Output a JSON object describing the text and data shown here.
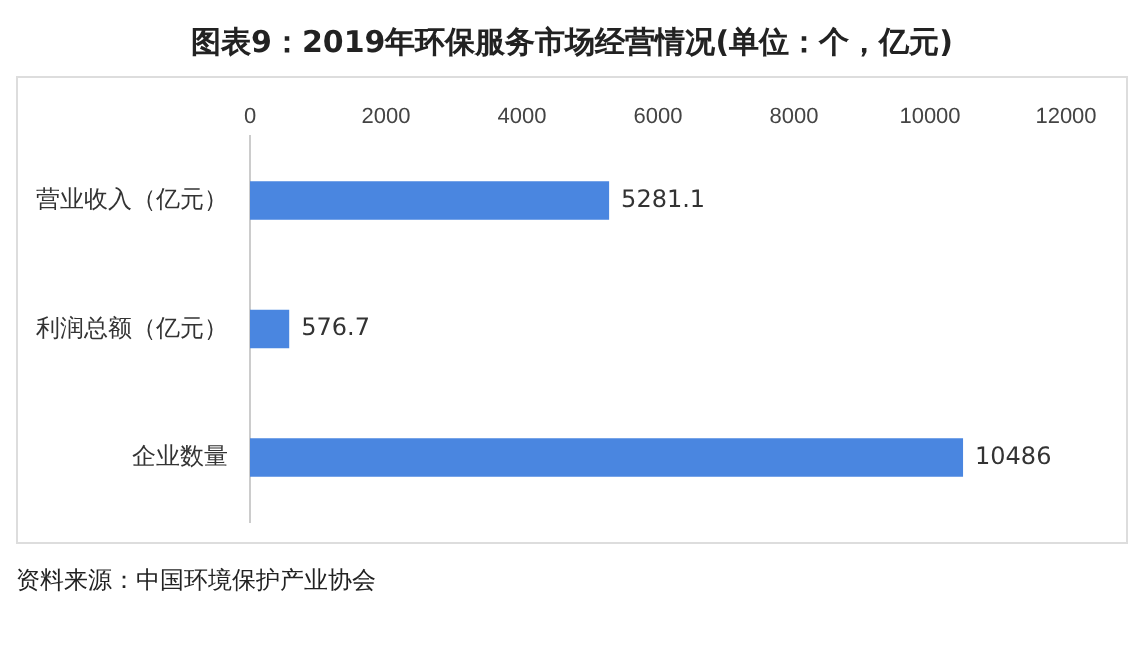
{
  "chart_data": {
    "type": "bar",
    "orientation": "horizontal",
    "title": "图表9：2019年环保服务市场经营情况(单位：个，亿元)",
    "categories": [
      "营业收入（亿元）",
      "利润总额（亿元）",
      "企业数量"
    ],
    "values": [
      5281.1,
      576.7,
      10486
    ],
    "color": "#4a86e0",
    "xlim": [
      0,
      12000
    ],
    "xticks": [
      0,
      2000,
      4000,
      6000,
      8000,
      10000,
      12000
    ],
    "data_labels": true,
    "legend": false,
    "annotations": [
      "资料来源：中国环境保护产业协会"
    ]
  }
}
